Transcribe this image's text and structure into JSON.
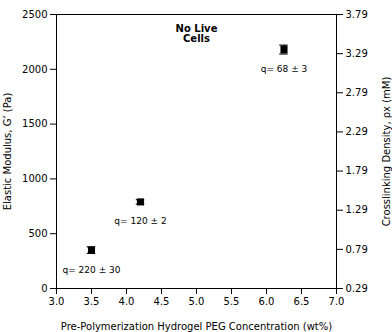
{
  "chart_data": {
    "type": "scatter",
    "x": [
      3.5,
      4.2,
      6.25
    ],
    "values": [
      350,
      790,
      2180
    ],
    "errors": [
      30,
      20,
      40
    ],
    "point_labels": [
      "q= 220 ± 30",
      "q= 120 ± 2",
      "q= 68 ± 3"
    ],
    "color": "black",
    "marker": "square",
    "annotation": "No Live\nCells",
    "xlabel": "Pre-Polymerization Hydrogel PEG Concentration (wt%)",
    "ylabel": "Elastic Modulus, G’ (Pa)",
    "y2label": "Crosslinking Density, ρx (mM)",
    "xlim": [
      3.0,
      7.0
    ],
    "xticks": [
      {
        "value": 3.0,
        "label": "3.0"
      },
      3.5,
      {
        "value": 4.0,
        "label": "4.0"
      },
      4.5,
      {
        "value": 5.0,
        "label": "5.0"
      },
      5.5,
      {
        "value": 6.0,
        "label": "6.0"
      },
      6.5,
      {
        "value": 7.0,
        "label": "7.0"
      }
    ],
    "ylim": [
      0,
      2500
    ],
    "yticks": [
      0,
      500,
      1000,
      1500,
      2000,
      2500
    ],
    "y2lim": [
      0.29,
      3.79
    ],
    "y2ticks": [
      0.29,
      0.79,
      1.29,
      1.79,
      2.29,
      2.79,
      3.29,
      3.79
    ],
    "grid": false
  }
}
